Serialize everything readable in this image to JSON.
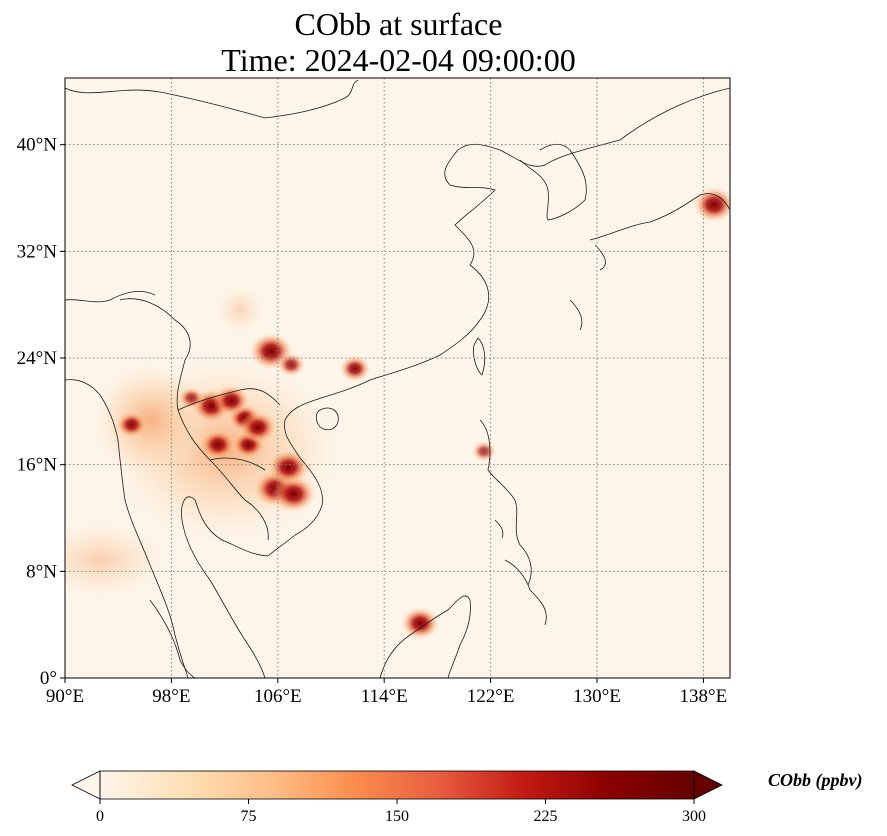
{
  "title": {
    "line1": "CObb at surface",
    "line2": "Time: 2024-02-04 09:00:00"
  },
  "map": {
    "variable": "CObb",
    "lon_range": [
      90,
      140
    ],
    "lat_range": [
      0,
      45
    ],
    "lon_ticks": [
      {
        "value": 90,
        "label": "90°E"
      },
      {
        "value": 98,
        "label": "98°E"
      },
      {
        "value": 106,
        "label": "106°E"
      },
      {
        "value": 114,
        "label": "114°E"
      },
      {
        "value": 122,
        "label": "122°E"
      },
      {
        "value": 130,
        "label": "130°E"
      },
      {
        "value": 138,
        "label": "138°E"
      }
    ],
    "lat_ticks": [
      {
        "value": 0,
        "label": "0°"
      },
      {
        "value": 8,
        "label": "8°N"
      },
      {
        "value": 16,
        "label": "16°N"
      },
      {
        "value": 24,
        "label": "24°N"
      },
      {
        "value": 32,
        "label": "32°N"
      },
      {
        "value": 40,
        "label": "40°N"
      }
    ],
    "gridlines": "dotted",
    "hotspots": [
      {
        "lon": 105.8,
        "lat": 14.2,
        "value": 300
      },
      {
        "lon": 107.2,
        "lat": 13.8,
        "value": 300
      },
      {
        "lon": 106.8,
        "lat": 15.8,
        "value": 280
      },
      {
        "lon": 105.5,
        "lat": 24.5,
        "value": 300
      },
      {
        "lon": 103.5,
        "lat": 19.5,
        "value": 200
      },
      {
        "lon": 101.0,
        "lat": 20.4,
        "value": 260
      },
      {
        "lon": 102.5,
        "lat": 20.8,
        "value": 230
      },
      {
        "lon": 101.5,
        "lat": 17.5,
        "value": 220
      },
      {
        "lon": 103.8,
        "lat": 17.5,
        "value": 200
      },
      {
        "lon": 104.5,
        "lat": 18.8,
        "value": 240
      },
      {
        "lon": 95.0,
        "lat": 19.0,
        "value": 180
      },
      {
        "lon": 116.7,
        "lat": 4.1,
        "value": 250
      },
      {
        "lon": 138.8,
        "lat": 35.5,
        "value": 280
      },
      {
        "lon": 111.8,
        "lat": 23.2,
        "value": 180
      },
      {
        "lon": 121.5,
        "lat": 17.0,
        "value": 120
      },
      {
        "lon": 99.5,
        "lat": 21.0,
        "value": 130
      },
      {
        "lon": 107.0,
        "lat": 23.5,
        "value": 150
      }
    ]
  },
  "colorbar": {
    "label": "CObb (ppbv)",
    "min": 0,
    "max": 300,
    "extend": "both",
    "ticks": [
      {
        "value": 0,
        "label": "0"
      },
      {
        "value": 75,
        "label": "75"
      },
      {
        "value": 150,
        "label": "150"
      },
      {
        "value": 225,
        "label": "225"
      },
      {
        "value": 300,
        "label": "300"
      }
    ],
    "colormap": [
      "#fff5eb",
      "#fee0b6",
      "#fdbf87",
      "#fb8d4d",
      "#e85c3f",
      "#c21b13",
      "#8b0000",
      "#660000"
    ]
  },
  "colors": {
    "map_background": "#fdf5ea",
    "coastline": "#1a1a1a",
    "gridline": "#808080"
  }
}
